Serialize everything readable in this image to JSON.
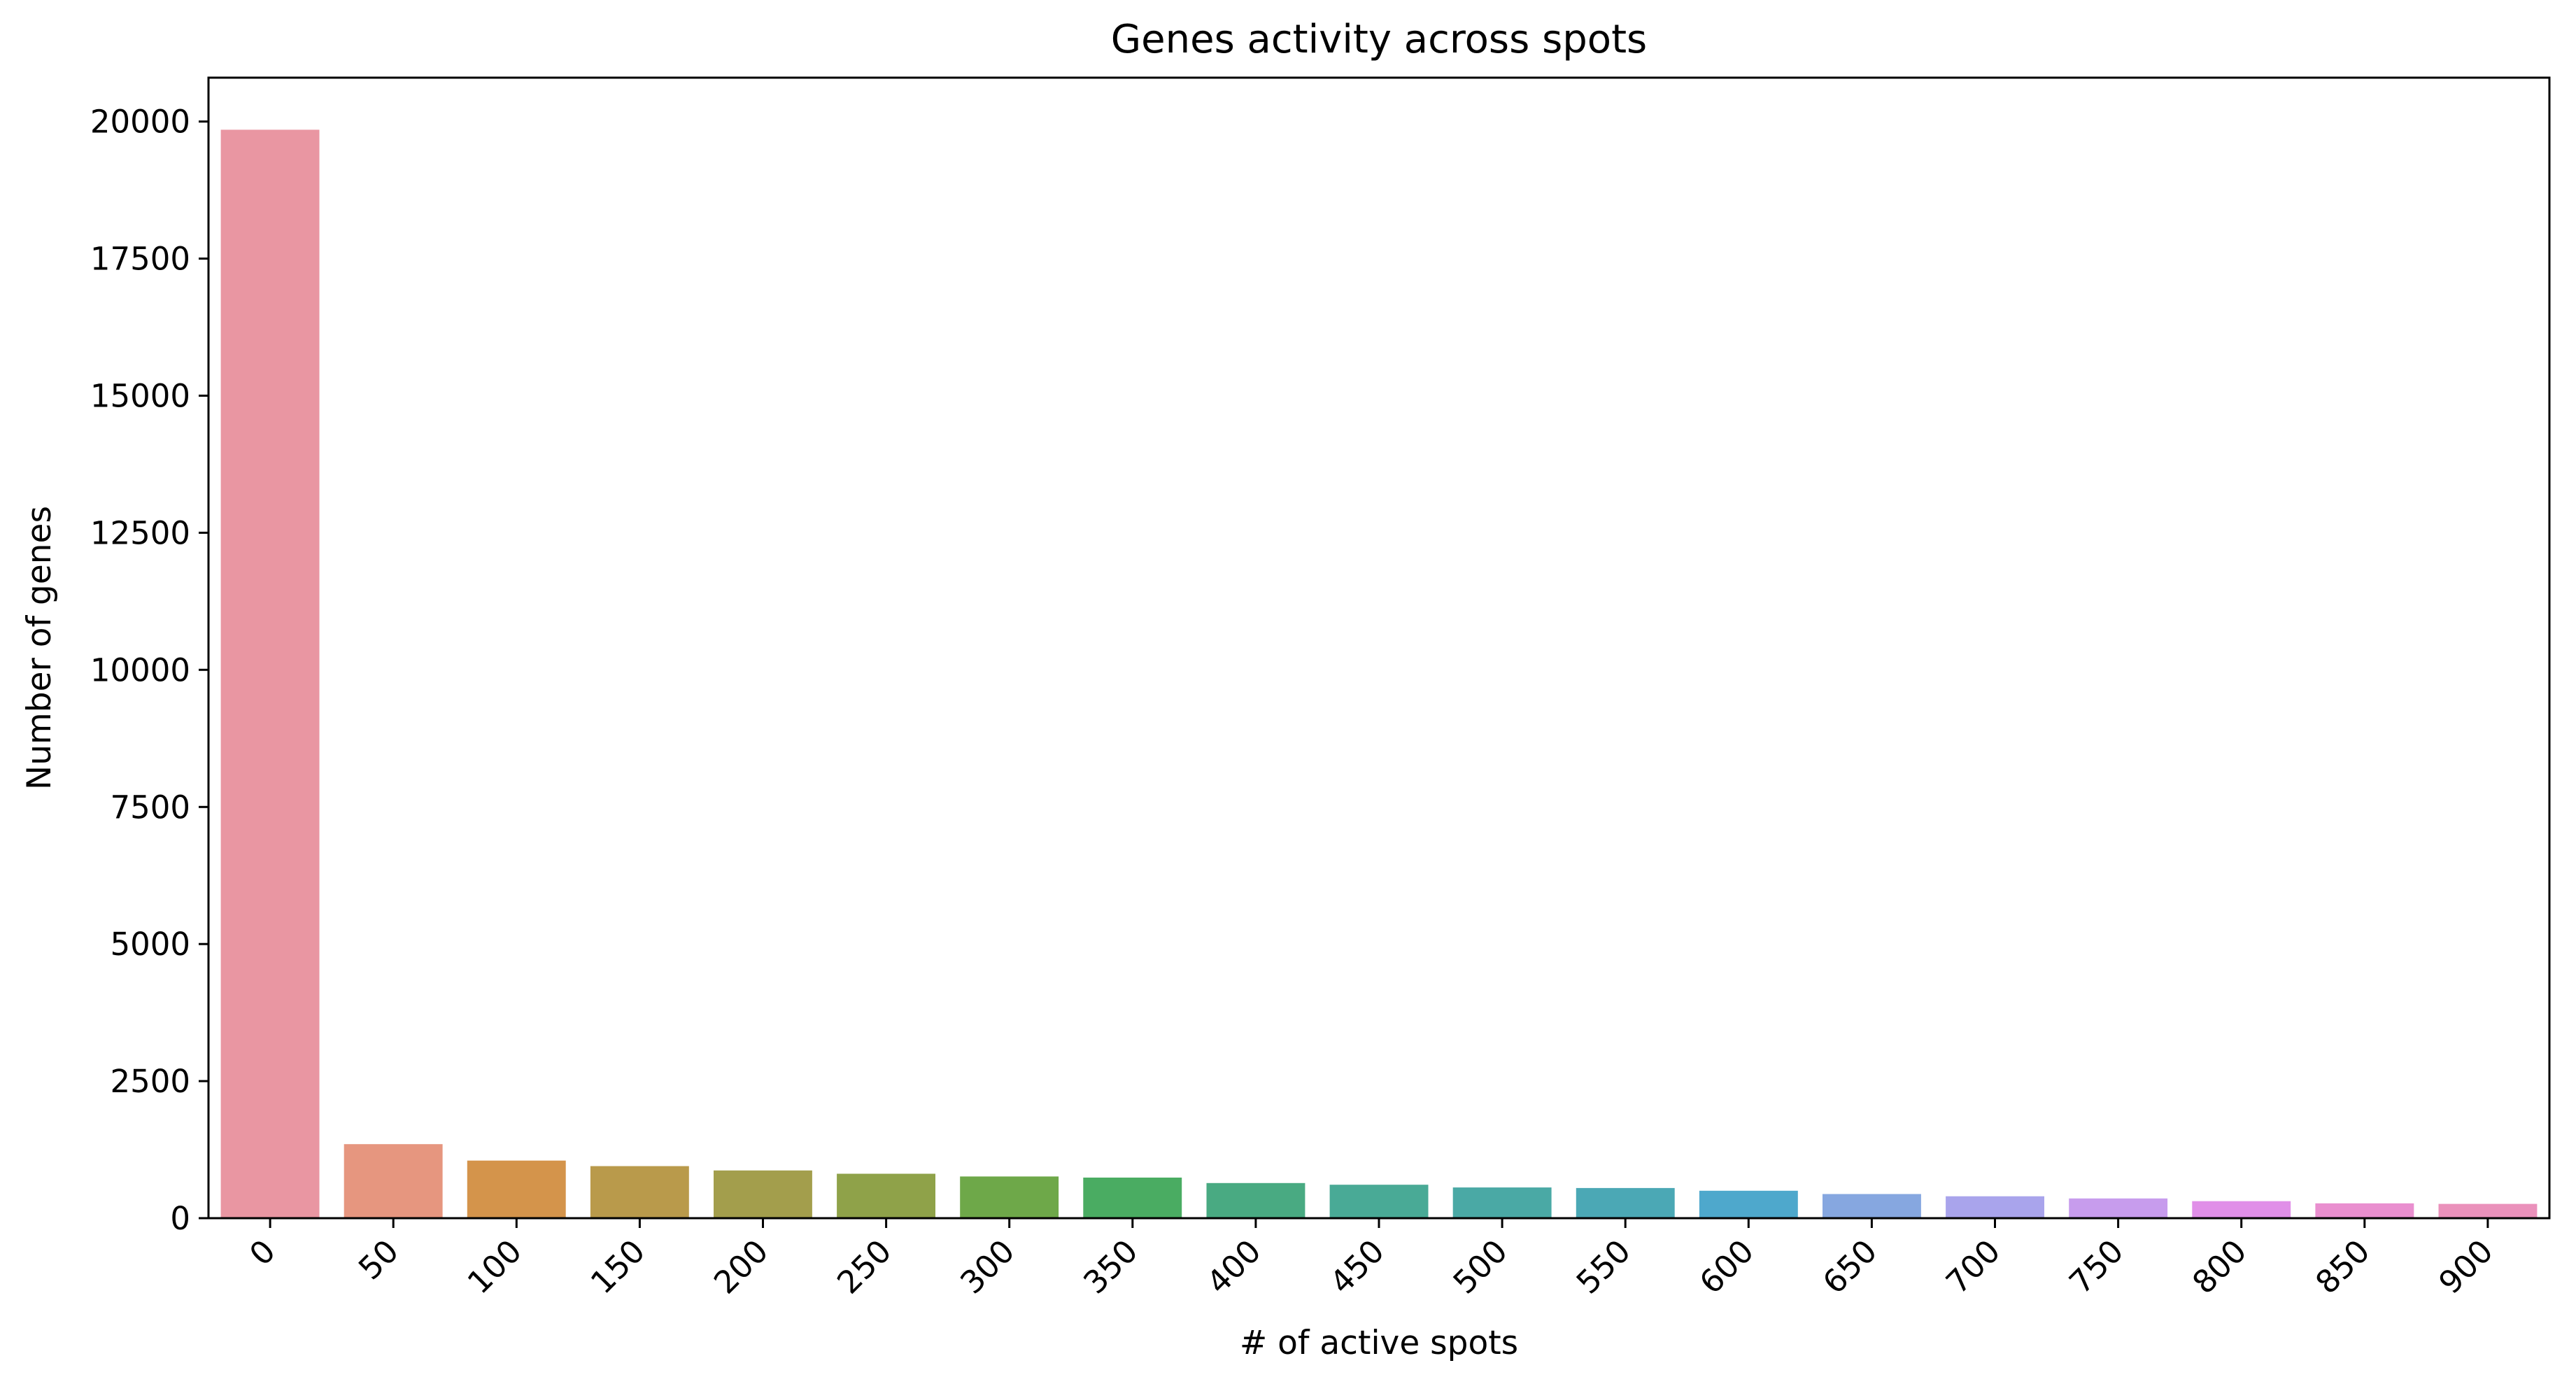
{
  "chart_data": {
    "type": "bar",
    "title": "Genes activity across spots",
    "xlabel": "# of active spots",
    "ylabel": "Number of genes",
    "categories": [
      "0",
      "50",
      "100",
      "150",
      "200",
      "250",
      "300",
      "350",
      "400",
      "450",
      "500",
      "550",
      "600",
      "650",
      "700",
      "750",
      "800",
      "850",
      "900"
    ],
    "values": [
      19850,
      1350,
      1050,
      950,
      870,
      810,
      760,
      740,
      640,
      610,
      560,
      550,
      500,
      440,
      400,
      360,
      310,
      270,
      260
    ],
    "ylim": [
      0,
      20800
    ],
    "yticks": [
      0,
      2500,
      5000,
      7500,
      10000,
      12500,
      15000,
      17500,
      20000
    ],
    "grid": false,
    "legend": "none",
    "colors": [
      "#e996a2",
      "#e6967f",
      "#d4944b",
      "#b99a4b",
      "#a39e4c",
      "#8fa249",
      "#6ea849",
      "#4aac62",
      "#49aa82",
      "#49aa96",
      "#4aa9a5",
      "#4ba8b5",
      "#4ea8cc",
      "#86a7e0",
      "#a9a4ec",
      "#c79ced",
      "#e08fe8",
      "#e98fcf",
      "#ea91bb"
    ]
  }
}
